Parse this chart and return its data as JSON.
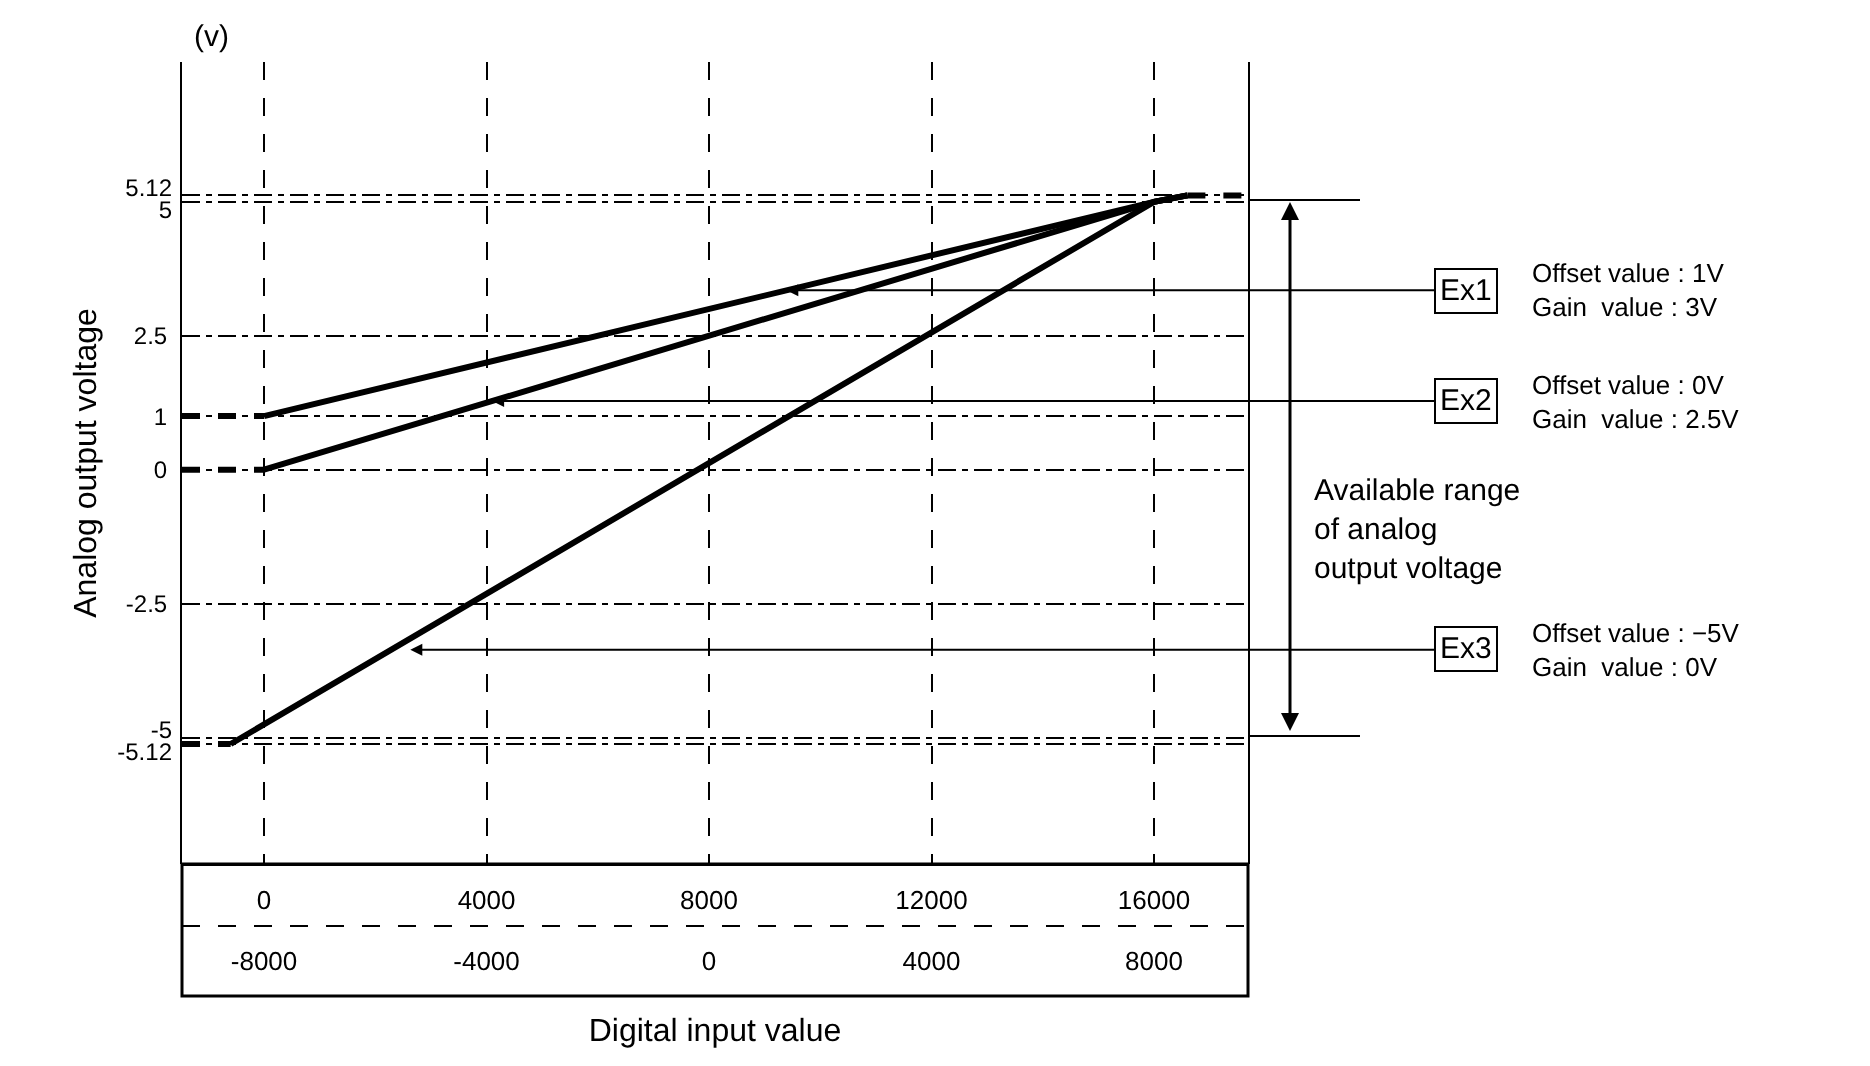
{
  "chart_data": {
    "type": "line",
    "xlabel": "Digital input value",
    "ylabel": "Analog output voltage",
    "xlim": [
      -1475,
      17690
    ],
    "xticks": [
      0,
      4000,
      8000,
      12000,
      16000
    ],
    "x2lim": [
      -9475,
      9690
    ],
    "x2ticks": [
      -8000,
      -4000,
      0,
      4000,
      8000
    ],
    "ylim": [
      -7.36,
      7.61
    ],
    "yticks": [
      -5.12,
      -5,
      -2.5,
      0,
      1,
      2.5,
      5,
      5.12
    ],
    "grid": true,
    "marker": "none",
    "line_style": "solid",
    "series": [
      {
        "color": "#000000",
        "x": [
          0,
          16000,
          16600
        ],
        "values": [
          1,
          5,
          5.12
        ]
      },
      {
        "color": "#000000",
        "x": [
          0,
          16000,
          16600
        ],
        "values": [
          0,
          5,
          5.12
        ]
      },
      {
        "color": "#000000",
        "x": [
          -600,
          16000,
          16600
        ],
        "values": [
          -5.12,
          5,
          5.12
        ]
      },
      {
        "color": "#000000",
        "line_style": "dashed",
        "x": [
          -1475,
          0
        ],
        "values": [
          1,
          1
        ]
      },
      {
        "color": "#000000",
        "line_style": "dashed",
        "x": [
          -1475,
          0
        ],
        "values": [
          0,
          0
        ]
      },
      {
        "color": "#000000",
        "line_style": "dashed",
        "x": [
          -1475,
          -600
        ],
        "values": [
          -5.12,
          -5.12
        ]
      },
      {
        "color": "#000000",
        "line_style": "dashed",
        "x": [
          16600,
          17690
        ],
        "values": [
          5.12,
          5.12
        ]
      }
    ],
    "annotations": [
      "(v)",
      {
        "text": "Ex1",
        "x": 9390,
        "y": 3.35
      },
      "Offset value : 1V\nGain  value : 3V",
      {
        "text": "Ex2",
        "x": 4100,
        "y": 1.28
      },
      "Offset value : 0V\nGain  value : 2.5V",
      {
        "text": "Ex3",
        "x": 2630,
        "y": -3.36
      },
      "Offset value : −5V\nGain  value : 0V",
      "Available range\nof analog\noutput voltage"
    ]
  }
}
